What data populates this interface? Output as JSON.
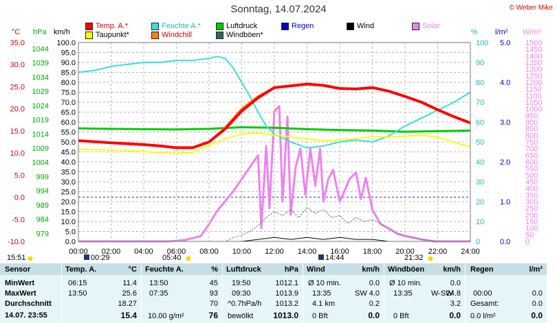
{
  "title": "Sonntag, 14.07.2024",
  "credit": "© Weber Mike",
  "colors": {
    "temp": "#ff0000",
    "humidity": "#33e0e6",
    "pressure": "#00cc00",
    "rain": "#0000cc",
    "wind": "#000000",
    "solar": "#ee82ee",
    "dewpoint": "#ffff00",
    "windchill": "#ff7f00",
    "gust": "#336666",
    "table_header": "#c6dee6",
    "table_body": "#e6f6f8"
  },
  "legend": [
    {
      "label": "Temp. A.*",
      "color": "#ff0000",
      "icon": "square-swatch"
    },
    {
      "label": "Feuchte A.*",
      "color": "#33e0e6",
      "icon": "square-swatch"
    },
    {
      "label": "Luftdruck",
      "color": "#00cc00",
      "icon": "square-swatch"
    },
    {
      "label": "Regen",
      "color": "#0000cc",
      "icon": "square-swatch"
    },
    {
      "label": "Wind",
      "color": "#000000",
      "icon": "square-swatch"
    },
    {
      "label": "Solar",
      "color": "#ee82ee",
      "icon": "square-swatch"
    },
    {
      "label": "Taupunkt*",
      "color": "#ffff00",
      "icon": "square-swatch"
    },
    {
      "label": "Windchill",
      "color": "#ff7f00",
      "icon": "square-swatch"
    },
    {
      "label": "Windböen*",
      "color": "#336666",
      "icon": "square-swatch"
    }
  ],
  "chart_data": {
    "type": "line",
    "title": "Sonntag, 14.07.2024",
    "x_ticks": [
      "00:00",
      "02:00",
      "04:00",
      "06:00",
      "08:00",
      "10:00",
      "12:00",
      "14:00",
      "16:00",
      "18:00",
      "20:00",
      "22:00",
      "24:00"
    ],
    "x_range": [
      "00:00",
      "24:00"
    ],
    "grid": true,
    "legend_position": "top",
    "axes": {
      "temp": {
        "unit": "°C",
        "range": [
          -10,
          35
        ],
        "ticks": [
          "35.0",
          "30.0",
          "25.0",
          "20.0",
          "15.0",
          "10.0",
          "5.0",
          "0.0",
          "-5.0",
          "-10.0"
        ]
      },
      "pressure": {
        "unit": "hPa",
        "range": [
          974,
          1044
        ],
        "ticks": [
          "1044",
          "1039",
          "1034",
          "1029",
          "1024",
          "1019",
          "1014",
          "1009",
          "1004",
          "999",
          "994",
          "989",
          "984",
          "979",
          "974"
        ]
      },
      "wind": {
        "unit": "km/h",
        "range": [
          0,
          100
        ],
        "ticks": [
          "100.0",
          "95.0",
          "90.0",
          "85.0",
          "80.0",
          "75.0",
          "70.0",
          "65.0",
          "60.0",
          "55.0",
          "50.0",
          "45.0",
          "40.0",
          "35.0",
          "30.0",
          "25.0",
          "20.0",
          "15.0",
          "10.0",
          "5.0",
          "0.0"
        ]
      },
      "humidity": {
        "unit": "%",
        "range": [
          0,
          100
        ],
        "ticks": [
          "100",
          "90",
          "80",
          "70",
          "60",
          "50",
          "40",
          "30",
          "20",
          "10",
          "0"
        ]
      },
      "rain": {
        "unit": "l/m²",
        "range": [
          0,
          5
        ],
        "ticks": [
          "5.0",
          "4.0",
          "3.0",
          "2.0",
          "1.0",
          "0.0"
        ]
      },
      "solar": {
        "unit": "W/m²",
        "range": [
          0,
          1500
        ],
        "ticks": [
          "1500",
          "1450",
          "1400",
          "1350",
          "1300",
          "1250",
          "1200",
          "1150",
          "1100",
          "1050",
          "1000",
          "950",
          "900",
          "850",
          "800",
          "750",
          "700",
          "650",
          "600",
          "550",
          "500",
          "450",
          "400",
          "350",
          "300",
          "250",
          "200",
          "150",
          "100",
          "50",
          "0"
        ]
      }
    },
    "freezing_line_temp": 0.0,
    "series": [
      {
        "name": "Temp. A.*",
        "axis": "temp",
        "color": "#ff0000",
        "points": [
          [
            0,
            12.8
          ],
          [
            2,
            12.3
          ],
          [
            4,
            11.9
          ],
          [
            5,
            11.6
          ],
          [
            6,
            11.2
          ],
          [
            7,
            11.2
          ],
          [
            8,
            12.5
          ],
          [
            9,
            15.5
          ],
          [
            10,
            19.5
          ],
          [
            11,
            22.5
          ],
          [
            12,
            24.8
          ],
          [
            13,
            25.2
          ],
          [
            14,
            25.6
          ],
          [
            15,
            25.3
          ],
          [
            16,
            24.6
          ],
          [
            17,
            24.5
          ],
          [
            18,
            24.8
          ],
          [
            19,
            24.0
          ],
          [
            20,
            22.8
          ],
          [
            21,
            21.5
          ],
          [
            22,
            19.8
          ],
          [
            23,
            18.2
          ],
          [
            24,
            16.8
          ]
        ]
      },
      {
        "name": "Taupunkt*",
        "axis": "temp",
        "color": "#ffff00",
        "points": [
          [
            0,
            10.8
          ],
          [
            2,
            10.7
          ],
          [
            4,
            10.3
          ],
          [
            6,
            9.9
          ],
          [
            7,
            10.1
          ],
          [
            8,
            11.8
          ],
          [
            9,
            13.2
          ],
          [
            10,
            14.3
          ],
          [
            11,
            14.5
          ],
          [
            12,
            14.1
          ],
          [
            13,
            13.6
          ],
          [
            14,
            13.2
          ],
          [
            15,
            12.8
          ],
          [
            16,
            12.9
          ],
          [
            17,
            13.3
          ],
          [
            18,
            13.7
          ],
          [
            19,
            13.6
          ],
          [
            20,
            13.8
          ],
          [
            21,
            14.0
          ],
          [
            22,
            13.6
          ],
          [
            23,
            12.4
          ],
          [
            24,
            11.4
          ]
        ]
      },
      {
        "name": "Windchill",
        "axis": "temp",
        "color": "#ff7f00",
        "points": [
          [
            0,
            12.8
          ],
          [
            2,
            12.3
          ],
          [
            4,
            11.9
          ],
          [
            6,
            11.2
          ],
          [
            7,
            11.2
          ],
          [
            8,
            12.5
          ],
          [
            9,
            15.8
          ],
          [
            10,
            20.0
          ],
          [
            11,
            22.8
          ],
          [
            12,
            24.8
          ],
          [
            13,
            25.2
          ],
          [
            14,
            25.6
          ],
          [
            15,
            25.3
          ],
          [
            16,
            24.6
          ],
          [
            17,
            24.5
          ],
          [
            18,
            24.8
          ],
          [
            19,
            24.0
          ],
          [
            20,
            22.8
          ],
          [
            21,
            21.5
          ],
          [
            22,
            19.8
          ],
          [
            23,
            18.2
          ],
          [
            24,
            16.8
          ]
        ]
      },
      {
        "name": "Feuchte A.*",
        "axis": "humidity",
        "color": "#33e0e6",
        "points": [
          [
            0,
            85
          ],
          [
            1,
            86
          ],
          [
            2,
            88
          ],
          [
            3,
            89
          ],
          [
            4,
            90
          ],
          [
            5,
            90
          ],
          [
            6,
            91
          ],
          [
            7,
            91
          ],
          [
            8,
            92
          ],
          [
            8.5,
            93
          ],
          [
            9,
            92
          ],
          [
            9.5,
            87
          ],
          [
            10,
            80
          ],
          [
            10.5,
            73
          ],
          [
            11,
            65
          ],
          [
            11.5,
            58
          ],
          [
            12,
            54
          ],
          [
            13,
            50
          ],
          [
            14,
            47
          ],
          [
            15,
            48
          ],
          [
            16,
            50
          ],
          [
            17,
            51
          ],
          [
            18,
            50
          ],
          [
            19,
            53
          ],
          [
            20,
            58
          ],
          [
            21,
            62
          ],
          [
            22,
            66
          ],
          [
            23,
            70
          ],
          [
            24,
            75
          ]
        ]
      },
      {
        "name": "Luftdruck",
        "axis": "pressure",
        "color": "#00cc00",
        "points": [
          [
            0,
            1013.8
          ],
          [
            2,
            1013.6
          ],
          [
            4,
            1013.5
          ],
          [
            6,
            1013.4
          ],
          [
            8,
            1013.6
          ],
          [
            10,
            1014.2
          ],
          [
            12,
            1014.0
          ],
          [
            14,
            1013.5
          ],
          [
            16,
            1013.2
          ],
          [
            18,
            1013.0
          ],
          [
            20,
            1012.6
          ],
          [
            22,
            1012.8
          ],
          [
            24,
            1013.0
          ]
        ]
      },
      {
        "name": "Windböen*",
        "axis": "wind",
        "color": "#336666",
        "points": [
          [
            0,
            0
          ],
          [
            9,
            0
          ],
          [
            9.5,
            2
          ],
          [
            10,
            3
          ],
          [
            10.5,
            5
          ],
          [
            11,
            8
          ],
          [
            11.5,
            12
          ],
          [
            12,
            15
          ],
          [
            12.5,
            13
          ],
          [
            13,
            16
          ],
          [
            13.5,
            12
          ],
          [
            14,
            17
          ],
          [
            14.5,
            14
          ],
          [
            15,
            16
          ],
          [
            15.5,
            12
          ],
          [
            16,
            13
          ],
          [
            16.5,
            9
          ],
          [
            17,
            12
          ],
          [
            17.5,
            10
          ],
          [
            18,
            11
          ],
          [
            18.5,
            9
          ],
          [
            19,
            6
          ],
          [
            19.5,
            4
          ],
          [
            20,
            3
          ],
          [
            21,
            1
          ],
          [
            22,
            0
          ],
          [
            24,
            0
          ]
        ]
      },
      {
        "name": "Wind",
        "axis": "wind",
        "color": "#000000",
        "points": [
          [
            0,
            0
          ],
          [
            10,
            0
          ],
          [
            11,
            1
          ],
          [
            12,
            2
          ],
          [
            13,
            1
          ],
          [
            14,
            2
          ],
          [
            15,
            1
          ],
          [
            16,
            2
          ],
          [
            17,
            1
          ],
          [
            18,
            1
          ],
          [
            19,
            0
          ],
          [
            24,
            0
          ]
        ]
      },
      {
        "name": "Solar",
        "axis": "solar",
        "color": "#ee82ee",
        "points": [
          [
            0,
            0
          ],
          [
            5.5,
            0
          ],
          [
            6.5,
            10
          ],
          [
            7.5,
            40
          ],
          [
            8.0,
            130
          ],
          [
            8.5,
            230
          ],
          [
            9.5,
            380
          ],
          [
            10.5,
            560
          ],
          [
            11.0,
            650
          ],
          [
            11.2,
            100
          ],
          [
            11.5,
            720
          ],
          [
            11.7,
            250
          ],
          [
            12.0,
            980
          ],
          [
            12.3,
            1020
          ],
          [
            12.5,
            300
          ],
          [
            12.8,
            940
          ],
          [
            13.0,
            200
          ],
          [
            13.3,
            560
          ],
          [
            13.6,
            700
          ],
          [
            13.9,
            350
          ],
          [
            14.2,
            700
          ],
          [
            14.5,
            420
          ],
          [
            14.8,
            700
          ],
          [
            15.0,
            300
          ],
          [
            15.3,
            470
          ],
          [
            15.6,
            540
          ],
          [
            16.0,
            300
          ],
          [
            16.3,
            380
          ],
          [
            16.6,
            470
          ],
          [
            17.0,
            520
          ],
          [
            17.3,
            320
          ],
          [
            17.6,
            480
          ],
          [
            18.0,
            240
          ],
          [
            18.5,
            130
          ],
          [
            19.0,
            100
          ],
          [
            19.5,
            60
          ],
          [
            20.0,
            40
          ],
          [
            21.0,
            15
          ],
          [
            21.8,
            0
          ],
          [
            24,
            0
          ]
        ]
      },
      {
        "name": "Regen",
        "axis": "rain",
        "color": "#0000cc",
        "points": [
          [
            0,
            0
          ],
          [
            24,
            0
          ]
        ]
      }
    ],
    "events": [
      {
        "label": "15:51",
        "icon": "sunset-icon"
      },
      {
        "label": "00:29",
        "icon": "moonset-icon"
      },
      {
        "label": "05:40",
        "icon": "sunrise-icon"
      },
      {
        "label": "14:44",
        "icon": "moonrise-icon"
      },
      {
        "label": "21:32",
        "icon": "sunset-icon"
      }
    ]
  },
  "table": {
    "sensor": {
      "header": "Sensor",
      "rows": [
        "MinWert",
        "MaxWert",
        "Durchschnitt"
      ],
      "footer": "14.07. 23:55"
    },
    "temp": {
      "header": "Temp. A.",
      "unit": "°C",
      "rows": [
        [
          "06:15",
          "11.4"
        ],
        [
          "13:50",
          "25.6"
        ],
        [
          "",
          "18.27"
        ]
      ],
      "footer": [
        "",
        "15.4"
      ]
    },
    "humidity": {
      "header": "Feuchte A.",
      "unit": "%",
      "rows": [
        [
          "13:50",
          "45"
        ],
        [
          "07:35",
          "93"
        ],
        [
          "",
          "70"
        ]
      ],
      "footer": [
        "10.00 g/m²",
        "76"
      ]
    },
    "pressure": {
      "header": "Luftdruck",
      "unit": "hPa",
      "rows": [
        [
          "19:50",
          "1012.1"
        ],
        [
          "09:30",
          "1013.9"
        ],
        [
          "^0.7hPa/h",
          "1013.2"
        ]
      ],
      "footer": [
        "bewölkt",
        "1013.0"
      ]
    },
    "wind": {
      "header": "Wind",
      "unit": "km/h",
      "rows": [
        [
          "Ø 10 min.",
          "",
          "0.0"
        ],
        [
          "13:35",
          "SW",
          "4.0"
        ],
        [
          "4.1 km",
          "",
          "0.2"
        ]
      ],
      "footer": [
        "0 Bft",
        "0.0"
      ]
    },
    "gust": {
      "header": "Windböen",
      "unit": "km/h",
      "rows": [
        [
          "Ø 10 min.",
          "",
          "0.0"
        ],
        [
          "13:35",
          "W-SW",
          "24.8"
        ],
        [
          "",
          "",
          "3.2"
        ]
      ],
      "footer": [
        "0 Bft",
        "0.0"
      ]
    },
    "rain": {
      "header": "Regen",
      "unit": "l/m²",
      "rows": [
        [
          "",
          ""
        ],
        [
          "00:00",
          "0.0"
        ],
        [
          "Gesamt:",
          "0.0"
        ]
      ],
      "footer": [
        "0.0 l/m²",
        "0.0"
      ]
    }
  }
}
